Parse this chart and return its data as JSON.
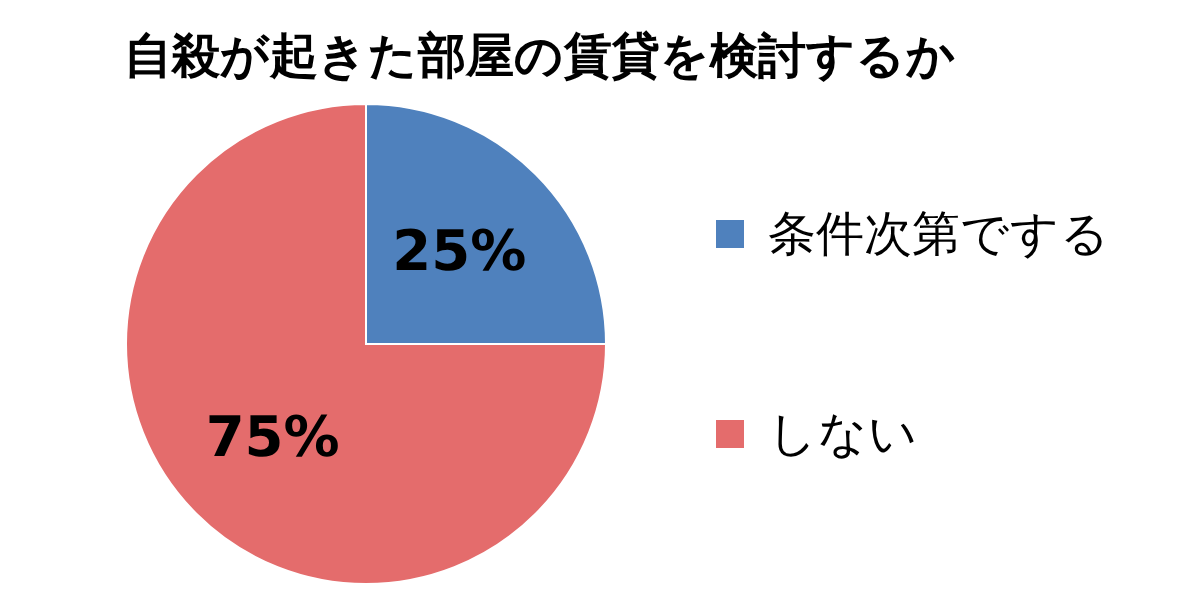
{
  "chart_data": {
    "type": "pie",
    "title": "自殺が起きた部屋の賃貸を検討するか",
    "categories": [
      "条件次第でする",
      "しない"
    ],
    "values": [
      25,
      75
    ],
    "colors": [
      "#4f81bd",
      "#e46c6c"
    ],
    "value_labels": [
      "25%",
      "75%"
    ],
    "legend": "right"
  }
}
